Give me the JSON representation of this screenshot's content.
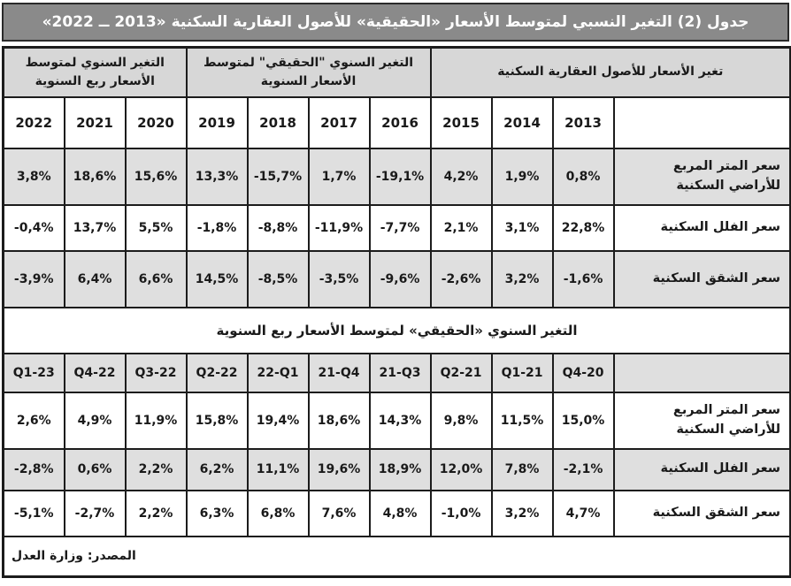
{
  "title": "جدول (2) التغير النسبي لمتوسط الأسعار «الحقيقية» للأصول العقارية السكنية «2013 ــ 2022»",
  "colors": {
    "title_bar_bg": "#8a8a8a",
    "title_text": "#ffffff",
    "header_gray": "#d7d7d7",
    "shaded_row_gray": "#dfdfdf",
    "border": "#1c1c1c"
  },
  "annual": {
    "group_right": "تغير الأسعار للأصول العقارية السكنية",
    "group_middle": "التغير السنوي \"الحقيقي\" لمتوسط الأسعار السنوية",
    "group_left": "التغير السنوي لمتوسط الأسعار ربع السنوية",
    "col_headers": [
      "2022",
      "2021",
      "2020",
      "2019",
      "2018",
      "2017",
      "2016",
      "2015",
      "2014",
      "2013"
    ],
    "rows": [
      {
        "label": "سعر المتر المربع للأراضي السكنية",
        "shaded": true,
        "height": "row-tall",
        "values": [
          "3,8%",
          "18,6%",
          "15,6%",
          "13,3%",
          "-15,7%",
          "1,7%",
          "-19,1%",
          "4,2%",
          "1,9%",
          "0,8%"
        ]
      },
      {
        "label": "سعر الفلل السكنية",
        "shaded": false,
        "height": "row-mid",
        "values": [
          "-0,4%",
          "13,7%",
          "5,5%",
          "-1,8%",
          "-8,8%",
          "-11,9%",
          "-7,7%",
          "2,1%",
          "3,1%",
          "22,8%"
        ]
      },
      {
        "label": "سعر الشقق السكنية",
        "shaded": true,
        "height": "row-tall",
        "values": [
          "-3,9%",
          "6,4%",
          "6,6%",
          "14,5%",
          "-8,5%",
          "-3,5%",
          "-9,6%",
          "-2,6%",
          "3,2%",
          "-1,6%"
        ]
      }
    ]
  },
  "quarterly": {
    "banner": "التغير السنوي «الحقيقي» لمتوسط الأسعار ربع السنوية",
    "col_headers": [
      "Q1-23",
      "Q4-22",
      "Q3-22",
      "Q2-22",
      "22-Q1",
      "21-Q4",
      "21-Q3",
      "Q2-21",
      "Q1-21",
      "Q4-20"
    ],
    "rows": [
      {
        "label": "سعر المتر المربع للأراضي السكنية",
        "shaded": false,
        "height": "row-tall",
        "values": [
          "2,6%",
          "4,9%",
          "11,9%",
          "15,8%",
          "19,4%",
          "18,6%",
          "14,3%",
          "9,8%",
          "11,5%",
          "15,0%"
        ]
      },
      {
        "label": "سعر الفلل السكنية",
        "shaded": true,
        "height": "row-short",
        "values": [
          "-2,8%",
          "0,6%",
          "2,2%",
          "6,2%",
          "11,1%",
          "19,6%",
          "18,9%",
          "12,0%",
          "7,8%",
          "-2,1%"
        ]
      },
      {
        "label": "سعر الشقق السكنية",
        "shaded": false,
        "height": "row-mid",
        "values": [
          "-5,1%",
          "-2,7%",
          "2,2%",
          "6,3%",
          "6,8%",
          "7,6%",
          "4,8%",
          "-1,0%",
          "3,2%",
          "4,7%"
        ]
      }
    ]
  },
  "source_note": "المصدر: وزارة العدل",
  "chart_data": [
    {
      "type": "table",
      "title": "التغير السنوي \"الحقيقي\" لمتوسط الأسعار السنوية (%)",
      "columns": [
        "2022",
        "2021",
        "2020",
        "2019",
        "2018",
        "2017",
        "2016",
        "2015",
        "2014",
        "2013"
      ],
      "rows": [
        {
          "name": "سعر المتر المربع للأراضي السكنية",
          "values": [
            3.8,
            18.6,
            15.6,
            13.3,
            -15.7,
            1.7,
            -19.1,
            4.2,
            1.9,
            0.8
          ]
        },
        {
          "name": "سعر الفلل السكنية",
          "values": [
            -0.4,
            13.7,
            5.5,
            -1.8,
            -8.8,
            -11.9,
            -7.7,
            2.1,
            3.1,
            22.8
          ]
        },
        {
          "name": "سعر الشقق السكنية",
          "values": [
            -3.9,
            6.4,
            6.6,
            14.5,
            -8.5,
            -3.5,
            -9.6,
            -2.6,
            3.2,
            -1.6
          ]
        }
      ]
    },
    {
      "type": "table",
      "title": "التغير السنوي «الحقيقي» لمتوسط الأسعار ربع السنوية (%)",
      "columns": [
        "Q1-23",
        "Q4-22",
        "Q3-22",
        "Q2-22",
        "Q1-22",
        "Q4-21",
        "Q3-21",
        "Q2-21",
        "Q1-21",
        "Q4-20"
      ],
      "rows": [
        {
          "name": "سعر المتر المربع للأراضي السكنية",
          "values": [
            2.6,
            4.9,
            11.9,
            15.8,
            19.4,
            18.6,
            14.3,
            9.8,
            11.5,
            15.0
          ]
        },
        {
          "name": "سعر الفلل السكنية",
          "values": [
            -2.8,
            0.6,
            2.2,
            6.2,
            11.1,
            19.6,
            18.9,
            12.0,
            7.8,
            -2.1
          ]
        },
        {
          "name": "سعر الشقق السكنية",
          "values": [
            -5.1,
            -2.7,
            2.2,
            6.3,
            6.8,
            7.6,
            4.8,
            -1.0,
            3.2,
            4.7
          ]
        }
      ]
    }
  ]
}
